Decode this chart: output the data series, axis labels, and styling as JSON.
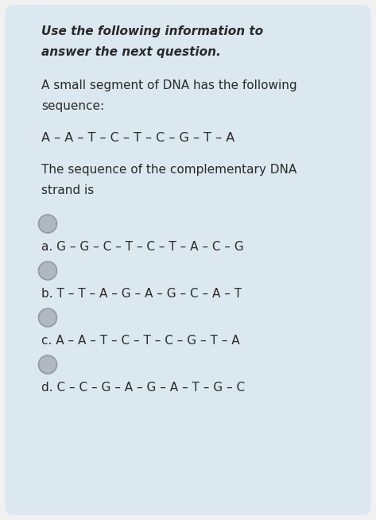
{
  "bg_outer": "#f0f0f0",
  "bg_inner": "#dce8f0",
  "title_line1": "Use the following information to",
  "title_line2": "answer the next question.",
  "body_line1": "A small segment of DNA has the following",
  "body_line2": "sequence:",
  "sequence": "A – A – T – C – T – C – G – T – A",
  "prompt_line1": "The sequence of the complementary DNA",
  "prompt_line2": "strand is",
  "options": [
    "a. G – G – C – T – C – T – A – C – G",
    "b. T – T – A – G – A – G – C – A – T",
    "c. A – A – T – C – T – C – G – T – A",
    "d. C – C – G – A – G – A – T – G – C"
  ],
  "title_fontsize": 11.0,
  "body_fontsize": 11.0,
  "seq_fontsize": 11.5,
  "option_fontsize": 11.0,
  "fig_width": 4.73,
  "fig_height": 6.54
}
